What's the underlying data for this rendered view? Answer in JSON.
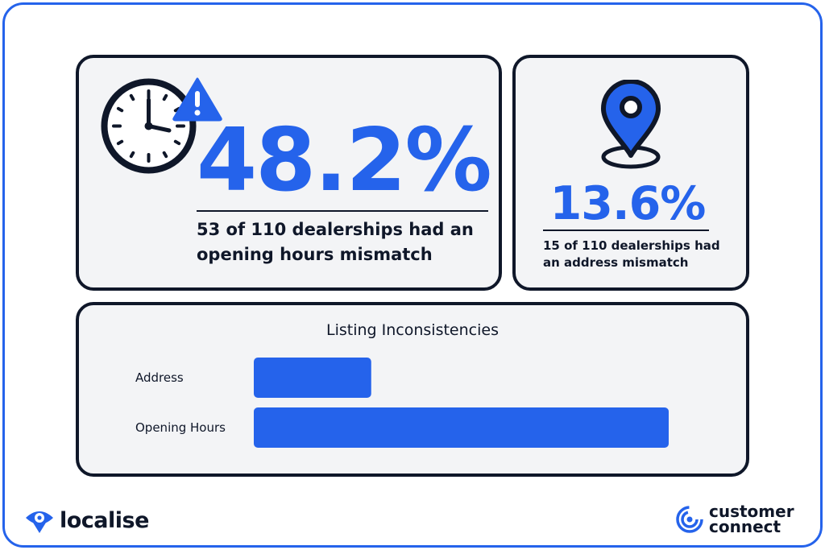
{
  "stats": {
    "hours": {
      "value": "48.2%",
      "description": "53 of 110 dealerships had an opening hours mismatch"
    },
    "address": {
      "value": "13.6%",
      "description": "15 of 110 dealerships had an address mismatch"
    }
  },
  "icons": {
    "clock": "clock-icon",
    "warning": "warning-icon",
    "pin": "location-pin-icon",
    "localise": "localise-logo",
    "customer_connect": "customer-connect-logo"
  },
  "colors": {
    "accent": "#2563eb",
    "dark": "#0f1729",
    "card_bg": "#f3f4f6"
  },
  "chart_data": {
    "type": "bar",
    "orientation": "horizontal",
    "title": "Listing Inconsistencies",
    "categories": [
      "Address",
      "Opening Hours"
    ],
    "values": [
      15,
      53
    ],
    "xlim": [
      0,
      53
    ],
    "grid": false,
    "legend": "none"
  },
  "brands": {
    "left": "localise",
    "right_line1": "customer",
    "right_line2": "connect"
  }
}
